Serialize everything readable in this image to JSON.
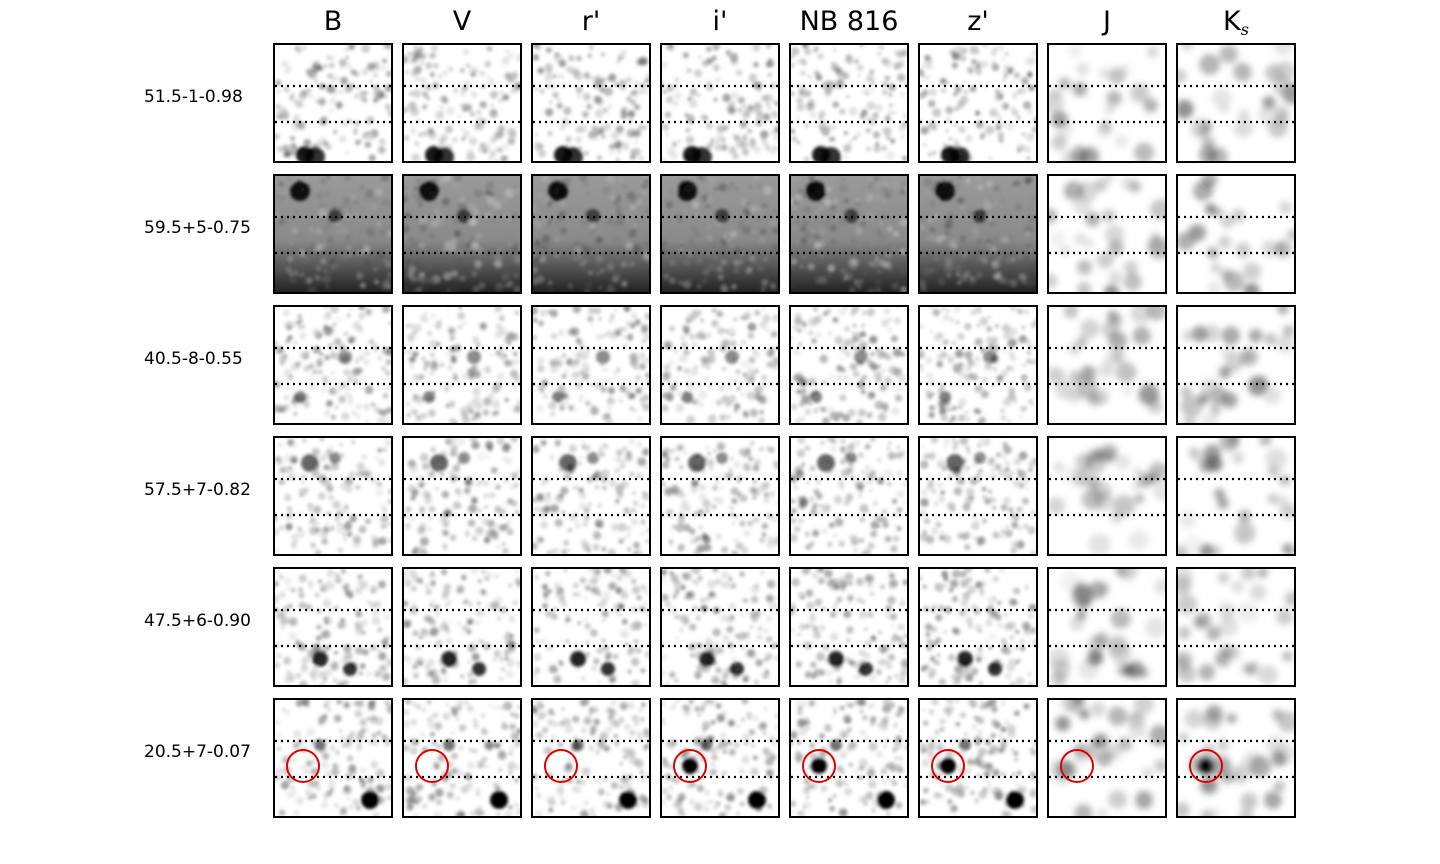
{
  "bands": [
    {
      "name": "B"
    },
    {
      "name": "V"
    },
    {
      "name": "r'"
    },
    {
      "name": "i'"
    },
    {
      "name": "NB 816"
    },
    {
      "name": "z'"
    },
    {
      "name": "J"
    },
    {
      "name": "K",
      "sub": "s"
    }
  ],
  "objects": [
    {
      "label": "51.5-1-0.98"
    },
    {
      "label": "59.5+5-0.75"
    },
    {
      "label": "40.5-8-0.55"
    },
    {
      "label": "57.5+7-0.82"
    },
    {
      "label": "47.5+6-0.90"
    },
    {
      "label": "20.5+7-0.07"
    }
  ],
  "colors": {
    "frame": "#000000",
    "marker": "#e00000",
    "sky": "#ffffff",
    "source": "#000000"
  }
}
